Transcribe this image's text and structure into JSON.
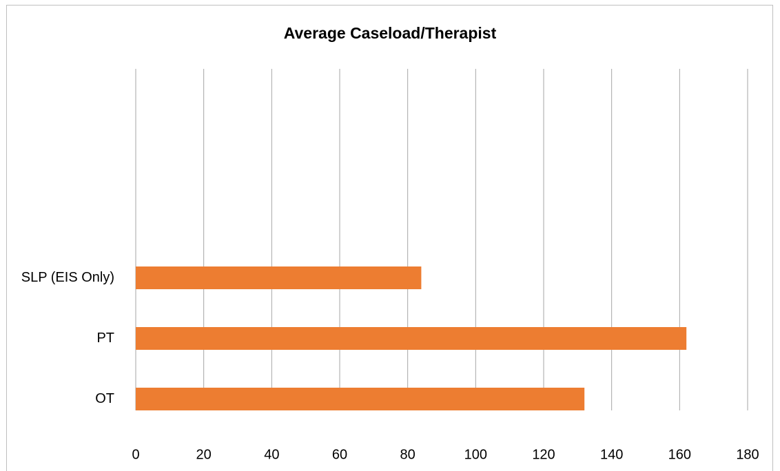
{
  "chart_data": {
    "type": "bar",
    "orientation": "horizontal",
    "title": "Average Caseload/Therapist",
    "categories": [
      "OT",
      "PT",
      "SLP (EIS Only)"
    ],
    "values": [
      132,
      162,
      84
    ],
    "color": "#ed7d31",
    "xlim": [
      0,
      180
    ],
    "xticks": [
      0,
      20,
      40,
      60,
      80,
      100,
      120,
      140,
      160,
      180
    ],
    "grid": true
  }
}
